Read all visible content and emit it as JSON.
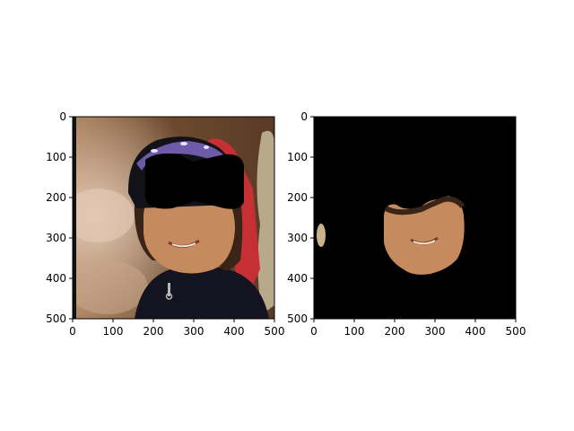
{
  "figure": {
    "panels": [
      {
        "name": "photo-panel",
        "content": "photo",
        "xlim": [
          0,
          500
        ],
        "ylim": [
          500,
          0
        ],
        "xticks": [
          "0",
          "100",
          "200",
          "300",
          "400",
          "500"
        ],
        "yticks": [
          "0",
          "100",
          "200",
          "300",
          "400",
          "500"
        ]
      },
      {
        "name": "mask-panel",
        "content": "mask",
        "xlim": [
          0,
          500
        ],
        "ylim": [
          500,
          0
        ],
        "xticks": [
          "0",
          "100",
          "200",
          "300",
          "400",
          "500"
        ],
        "yticks": [
          "0",
          "100",
          "200",
          "300",
          "400",
          "500"
        ]
      }
    ]
  },
  "colors": {
    "skin": "#c58a5e",
    "skin_shadow": "#9e6a45",
    "hair": "#3a2418",
    "helmet": "#121218",
    "visor": "#6d5aa8",
    "occluder": "#000000",
    "jacket": "#141420",
    "ribbon": "#c62f33",
    "trophy": "#b8a98a",
    "bg_dark": "#6b4a2e",
    "bg_light": "#d8b9a0",
    "mask_bg": "#000000",
    "stray_blob": "#c9b28c"
  }
}
